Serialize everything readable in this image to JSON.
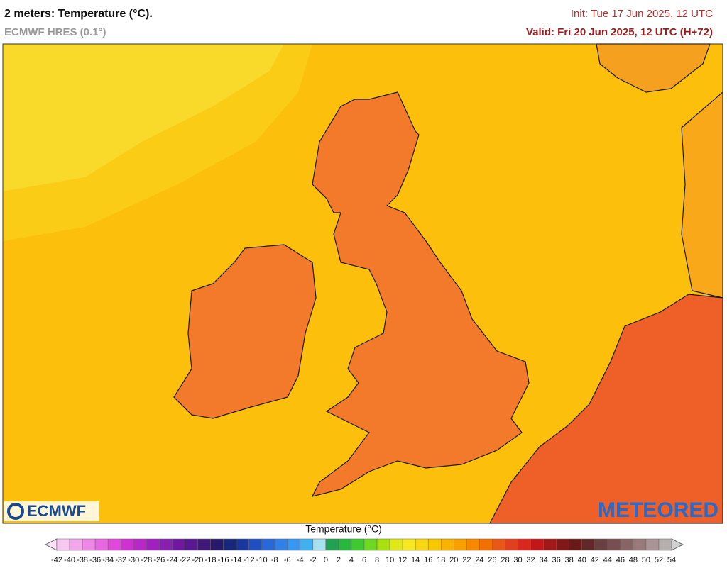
{
  "header": {
    "title": "2 meters: Temperature (°C).",
    "model": "ECMWF HRES (0.1°)",
    "init": "Init: Tue 17 Jun 2025, 12 UTC",
    "valid": "Valid: Fri 20 Jun 2025, 12 UTC (H+72)"
  },
  "map": {
    "logo_left": "ECMWF",
    "logo_right": "METEORED"
  },
  "colorbar": {
    "title": "Temperature (°C)",
    "ticks": [
      -42,
      -40,
      -38,
      -36,
      -34,
      -32,
      -30,
      -28,
      -26,
      -24,
      -22,
      -20,
      -18,
      -16,
      -14,
      -12,
      -10,
      -8,
      -6,
      -4,
      -2,
      0,
      2,
      4,
      6,
      8,
      10,
      12,
      14,
      16,
      18,
      20,
      22,
      24,
      26,
      28,
      30,
      32,
      34,
      36,
      38,
      40,
      42,
      44,
      46,
      48,
      50,
      52,
      54
    ],
    "colors": [
      "#f8c8f0",
      "#f4a8ec",
      "#ee88e6",
      "#e868e0",
      "#e048da",
      "#d030d0",
      "#b828c8",
      "#a020c0",
      "#8820b0",
      "#7018a0",
      "#581890",
      "#401878",
      "#281868",
      "#182878",
      "#1838a0",
      "#2050c0",
      "#2868d8",
      "#3080e8",
      "#3898f0",
      "#40b0f0",
      "#a8e0f0",
      "#20a050",
      "#28b840",
      "#40c830",
      "#70d820",
      "#a8e010",
      "#e0e818",
      "#f8e820",
      "#f8d810",
      "#f8c800",
      "#f8b400",
      "#f8a000",
      "#f88800",
      "#f07000",
      "#e85818",
      "#e04020",
      "#d82820",
      "#c01818",
      "#a01818",
      "#801818",
      "#681a1a",
      "#602828",
      "#684040",
      "#785050",
      "#886464",
      "#987a7a",
      "#a89494",
      "#b8b0b0"
    ],
    "under_color": "#fde0f8",
    "over_color": "#d0d0d0"
  }
}
